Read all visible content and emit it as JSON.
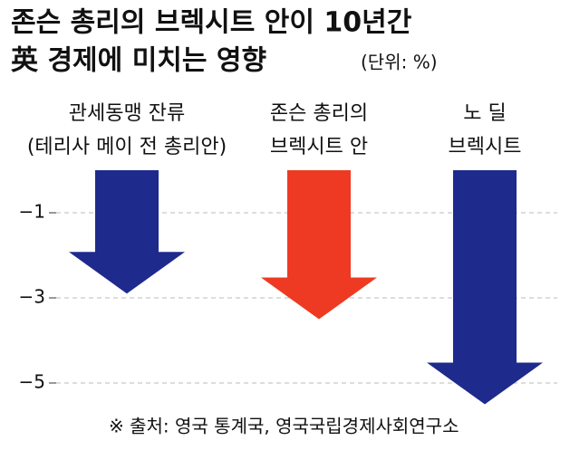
{
  "chart_data": {
    "type": "arrow-bar",
    "title": [
      "존슨 총리의 브렉시트 안이 10년간",
      "英 경제에 미치는 영향"
    ],
    "subtitle": "(단위: %)",
    "categories": [
      [
        "관세동맹 잔류",
        "(테리사 메이 전 총리안)"
      ],
      [
        "존슨 총리의",
        "브렉시트 안"
      ],
      [
        "노 딜",
        "브렉시트"
      ]
    ],
    "values": [
      -2.9,
      -3.5,
      -5.5
    ],
    "colors": [
      "#1e2a8c",
      "#ee3a22",
      "#1e2a8c"
    ],
    "ylim": [
      0,
      -6
    ],
    "yticks": [
      {
        "value": -1,
        "label": "−1"
      },
      {
        "value": -3,
        "label": "−3"
      },
      {
        "value": -5,
        "label": "−5"
      }
    ],
    "grid": true,
    "source": "※ 출처: 영국 통계국, 영국국립경제사회연구소"
  }
}
